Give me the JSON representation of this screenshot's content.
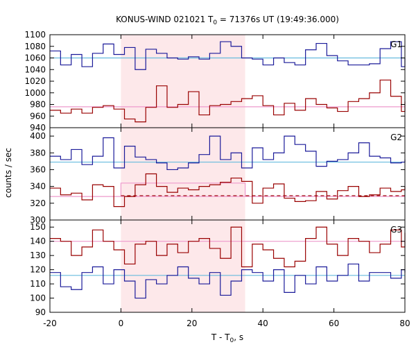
{
  "chart_data": {
    "type": "line",
    "title_prefix": "KONUS-WIND 021021 T",
    "title_sub": "0",
    "title_suffix": " = 71376s UT (19:49:36.000)",
    "xlabel_prefix": "T - T",
    "xlabel_sub": "0",
    "xlabel_suffix": ", s",
    "ylabel": "counts / sec",
    "xlim": [
      -20,
      80
    ],
    "x_ticks": [
      "-20",
      "0",
      "20",
      "40",
      "60",
      "80"
    ],
    "x_tick_values": [
      -20,
      0,
      20,
      40,
      60,
      80
    ],
    "shaded_interval": [
      0,
      35
    ],
    "shade_color": "#fde8ea",
    "bin_edges": [
      -20,
      -17,
      -14,
      -11,
      -8,
      -5,
      -2,
      1,
      4,
      7,
      10,
      13,
      16,
      19,
      22,
      25,
      28,
      31,
      34,
      37,
      40,
      43,
      46,
      49,
      52,
      55,
      58,
      61,
      64,
      67,
      70,
      73,
      76,
      79,
      80
    ],
    "panels": [
      {
        "name": "G1",
        "ylim": [
          940,
          1100
        ],
        "yticks": [
          940,
          960,
          980,
          1000,
          1020,
          1040,
          1060,
          1080,
          1100
        ],
        "series": [
          {
            "color": "#1a1a99",
            "values": [
              1072,
              1048,
              1066,
              1045,
              1068,
              1084,
              1066,
              1078,
              1040,
              1075,
              1068,
              1060,
              1058,
              1062,
              1058,
              1068,
              1088,
              1080,
              1060,
              1058,
              1048,
              1060,
              1052,
              1048,
              1074,
              1085,
              1064,
              1055,
              1048,
              1048,
              1050,
              1076,
              1088,
              1045,
              1060
            ],
            "baseline": 1060,
            "baseline_color": "#66bbdd"
          },
          {
            "color": "#990000",
            "values": [
              970,
              965,
              972,
              965,
              975,
              978,
              972,
              955,
              950,
              975,
              1012,
              975,
              980,
              1002,
              962,
              978,
              980,
              985,
              990,
              995,
              978,
              962,
              982,
              970,
              990,
              980,
              974,
              968,
              985,
              990,
              1000,
              1022,
              994,
              968,
              985
            ],
            "baseline": 976,
            "baseline_color": "#ee99cc"
          }
        ]
      },
      {
        "name": "G2",
        "ylim": [
          300,
          410
        ],
        "yticks": [
          300,
          320,
          340,
          360,
          380,
          400
        ],
        "series": [
          {
            "color": "#1a1a99",
            "values": [
              376,
              372,
              384,
              366,
              376,
              398,
              362,
              388,
              375,
              372,
              368,
              360,
              362,
              368,
              378,
              400,
              372,
              380,
              362,
              386,
              372,
              380,
              400,
              390,
              382,
              364,
              370,
              372,
              380,
              392,
              376,
              374,
              368,
              369,
              372
            ],
            "baseline": 369,
            "baseline_color": "#66bbdd"
          },
          {
            "color": "#990000",
            "values": [
              338,
              330,
              332,
              324,
              342,
              340,
              316,
              328,
              342,
              355,
              340,
              333,
              338,
              336,
              340,
              342,
              345,
              350,
              346,
              320,
              338,
              343,
              326,
              322,
              323,
              334,
              325,
              335,
              340,
              328,
              330,
              338,
              334,
              336,
              340
            ],
            "baseline": 328,
            "baseline_color": "#ee99cc",
            "dashed_level": 329,
            "pink_box_level": 344
          }
        ]
      },
      {
        "name": "G3",
        "ylim": [
          90,
          155
        ],
        "yticks": [
          90,
          100,
          110,
          120,
          130,
          140,
          150
        ],
        "series": [
          {
            "color": "#990000",
            "values": [
              142,
              140,
              130,
              136,
              148,
              140,
              134,
              124,
              138,
              140,
              130,
              138,
              132,
              140,
              142,
              135,
              128,
              150,
              122,
              138,
              134,
              128,
              122,
              126,
              142,
              150,
              138,
              130,
              142,
              140,
              132,
              138,
              148,
              136,
              146
            ],
            "baseline": 140,
            "baseline_color": "#ee99cc"
          },
          {
            "color": "#1a1a99",
            "values": [
              118,
              108,
              106,
              118,
              122,
              110,
              120,
              112,
              100,
              113,
              110,
              116,
              122,
              114,
              110,
              118,
              102,
              112,
              120,
              118,
              112,
              120,
              104,
              116,
              110,
              122,
              112,
              116,
              124,
              112,
              118,
              118,
              114,
              120,
              118
            ],
            "baseline": 116,
            "baseline_color": "#66bbdd"
          }
        ]
      }
    ]
  }
}
